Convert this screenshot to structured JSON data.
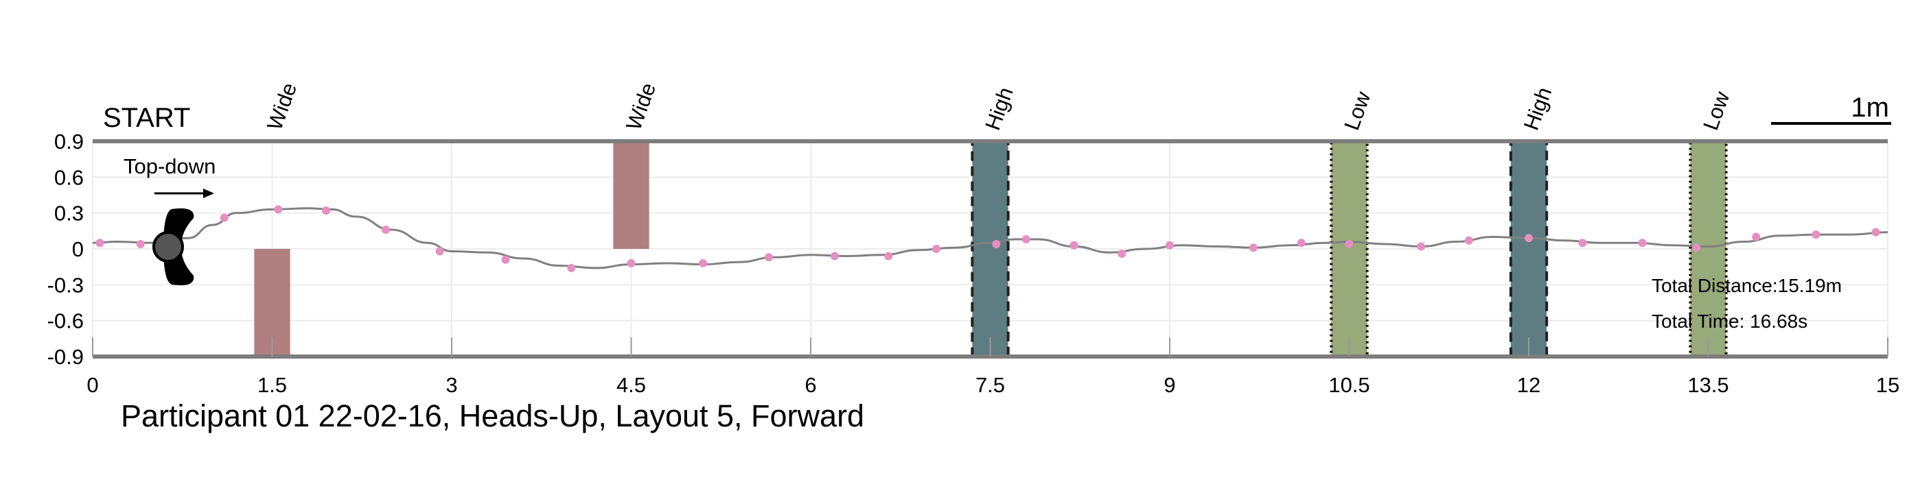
{
  "chart_data": {
    "type": "line",
    "title": "Participant 01 22-02-16, Heads-Up, Layout 5, Forward",
    "xlim": [
      0,
      15
    ],
    "ylim": [
      -0.9,
      0.9
    ],
    "x_ticks": [
      "0",
      "1.5",
      "3",
      "4.5",
      "6",
      "7.5",
      "9",
      "10.5",
      "12",
      "13.5",
      "15"
    ],
    "y_ticks": [
      "0.9",
      "0.6",
      "0.3",
      "0",
      "-0.3",
      "-0.6",
      "-0.9"
    ],
    "grid": true,
    "start_label": "START",
    "direction_label": "Top-down",
    "scale_label": "1m",
    "total_distance": "Total Distance:15.19m",
    "total_time": "Total Time: 16.68s",
    "colors": {
      "path": "#808080",
      "markers": "#e58fc3",
      "wide": "#b07f7f",
      "high": "#5e7d82",
      "low": "#98a97a"
    },
    "path_points": {
      "x": [
        0.0,
        0.2,
        0.5,
        0.8,
        1.0,
        1.2,
        1.5,
        1.8,
        2.0,
        2.2,
        2.5,
        2.8,
        3.0,
        3.3,
        3.6,
        3.9,
        4.2,
        4.5,
        4.8,
        5.1,
        5.4,
        5.7,
        6.0,
        6.3,
        6.6,
        6.9,
        7.2,
        7.5,
        7.7,
        7.9,
        8.2,
        8.5,
        8.8,
        9.1,
        9.4,
        9.7,
        10.0,
        10.3,
        10.5,
        10.8,
        11.1,
        11.4,
        11.7,
        12.0,
        12.3,
        12.6,
        12.9,
        13.2,
        13.5,
        13.8,
        14.1,
        14.4,
        14.7,
        15.0
      ],
      "y": [
        0.05,
        0.06,
        0.05,
        0.09,
        0.2,
        0.3,
        0.33,
        0.34,
        0.33,
        0.27,
        0.16,
        0.05,
        -0.02,
        -0.03,
        -0.08,
        -0.14,
        -0.16,
        -0.13,
        -0.12,
        -0.13,
        -0.11,
        -0.07,
        -0.05,
        -0.06,
        -0.05,
        -0.01,
        0.01,
        0.05,
        0.08,
        0.08,
        0.02,
        -0.03,
        0.0,
        0.03,
        0.02,
        0.01,
        0.03,
        0.05,
        0.06,
        0.04,
        0.02,
        0.06,
        0.1,
        0.09,
        0.07,
        0.05,
        0.05,
        0.03,
        0.02,
        0.06,
        0.11,
        0.12,
        0.12,
        0.14
      ]
    },
    "markers": {
      "x": [
        0.06,
        0.4,
        1.1,
        1.55,
        1.95,
        2.45,
        2.9,
        3.45,
        4.0,
        4.5,
        5.1,
        5.65,
        6.2,
        6.65,
        7.05,
        7.55,
        7.8,
        8.2,
        8.6,
        9.0,
        9.7,
        10.1,
        10.5,
        11.1,
        11.5,
        12.0,
        12.45,
        12.95,
        13.4,
        13.9,
        14.4,
        14.9
      ],
      "y": [
        0.05,
        0.04,
        0.26,
        0.33,
        0.32,
        0.16,
        -0.02,
        -0.09,
        -0.16,
        -0.12,
        -0.12,
        -0.07,
        -0.06,
        -0.06,
        0.0,
        0.04,
        0.08,
        0.03,
        -0.04,
        0.03,
        0.01,
        0.05,
        0.04,
        0.02,
        0.07,
        0.09,
        0.05,
        0.05,
        0.01,
        0.1,
        0.12,
        0.14
      ]
    },
    "obstacles": [
      {
        "label": "Wide",
        "type": "wide",
        "x0": 1.35,
        "x1": 1.65,
        "y0": -0.9,
        "y1": 0.0
      },
      {
        "label": "Wide",
        "type": "wide",
        "x0": 4.35,
        "x1": 4.65,
        "y0": 0.0,
        "y1": 0.9
      },
      {
        "label": "High",
        "type": "high",
        "x0": 7.35,
        "x1": 7.65,
        "y0": -0.9,
        "y1": 0.9
      },
      {
        "label": "Low",
        "type": "low",
        "x0": 10.35,
        "x1": 10.65,
        "y0": -0.9,
        "y1": 0.9
      },
      {
        "label": "High",
        "type": "high",
        "x0": 11.85,
        "x1": 12.15,
        "y0": -0.9,
        "y1": 0.9
      },
      {
        "label": "Low",
        "type": "low",
        "x0": 13.35,
        "x1": 13.65,
        "y0": -0.9,
        "y1": 0.9
      }
    ]
  }
}
